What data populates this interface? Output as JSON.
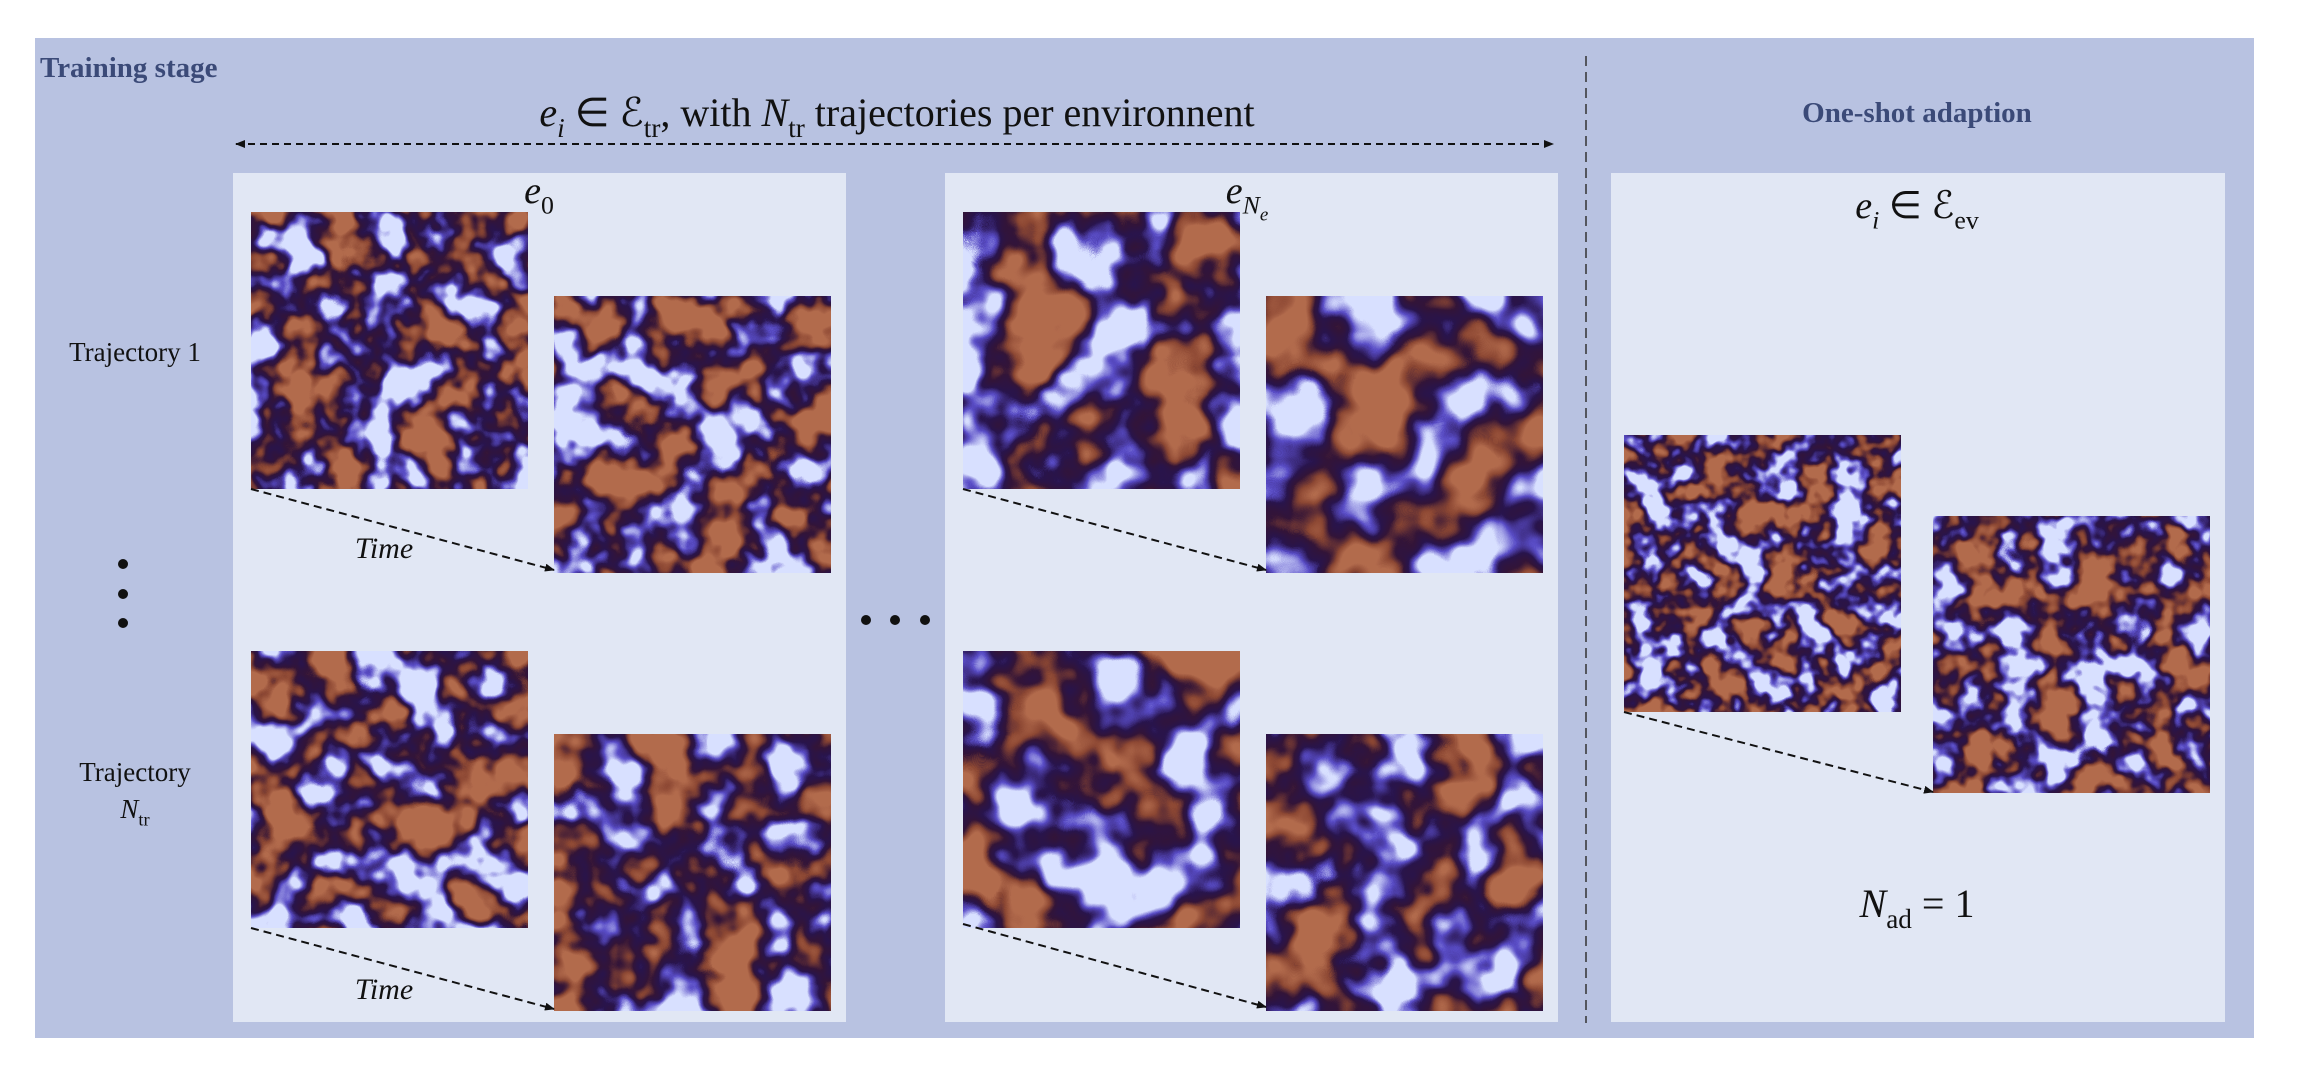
{
  "training_stage": "Training stage",
  "header": [
    {
      "text": "e",
      "italic": true,
      "level": 0
    },
    {
      "text": "i",
      "italic": true,
      "level": 1
    },
    {
      "text": " ∈ ",
      "italic": false,
      "level": 0
    },
    {
      "text": "ℰ",
      "italic": false,
      "level": 0
    },
    {
      "text": "tr",
      "italic": false,
      "level": 1
    },
    {
      "text": ", with ",
      "italic": false,
      "level": 0
    },
    {
      "text": "N",
      "italic": true,
      "level": 0
    },
    {
      "text": "tr",
      "italic": false,
      "level": 1
    },
    {
      "text": " trajectories per environnent",
      "italic": false,
      "level": 0
    }
  ],
  "env_first": [
    {
      "text": "e",
      "italic": true,
      "level": 0
    },
    {
      "text": "0",
      "italic": false,
      "level": 1
    }
  ],
  "env_last": [
    {
      "text": "e",
      "italic": true,
      "level": 0
    },
    {
      "text": "N",
      "italic": true,
      "level": 1
    },
    {
      "text": "e",
      "italic": true,
      "level": 2
    }
  ],
  "trajectory_first": "Trajectory 1",
  "trajectory_last": {
    "line1": "Trajectory",
    "line2": [
      {
        "text": "N",
        "italic": true,
        "level": 0
      },
      {
        "text": "tr",
        "italic": false,
        "level": 1
      }
    ]
  },
  "time_labels": [
    "Time",
    "Time"
  ],
  "adaptation_title": "One-shot adaption",
  "adaptation_env": [
    {
      "text": "e",
      "italic": true,
      "level": 0
    },
    {
      "text": "i",
      "italic": true,
      "level": 1
    },
    {
      "text": " ∈ ",
      "italic": false,
      "level": 0
    },
    {
      "text": "ℰ",
      "italic": false,
      "level": 0
    },
    {
      "text": "ev",
      "italic": false,
      "level": 1
    }
  ],
  "adaptation_count": [
    {
      "text": "N",
      "italic": true,
      "level": 0
    },
    {
      "text": "ad",
      "italic": false,
      "level": 1
    },
    {
      "text": " = 1",
      "italic": false,
      "level": 0
    }
  ]
}
